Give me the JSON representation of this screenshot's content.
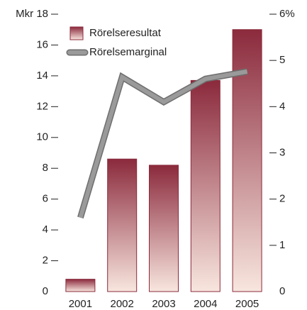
{
  "chart_data": {
    "type": "bar",
    "categories": [
      "2001",
      "2002",
      "2003",
      "2004",
      "2005"
    ],
    "series": [
      {
        "name": "Rörelseresultat",
        "type": "bar",
        "color": "#8b2a3c",
        "values": [
          0.8,
          8.6,
          8.2,
          13.7,
          17.0
        ]
      },
      {
        "name": "Rörelsemarginal",
        "type": "line",
        "axis": "y2",
        "color": "#9a9a9a",
        "values": [
          1.6,
          4.64,
          4.1,
          4.6,
          4.76
        ]
      }
    ],
    "ylim": [
      0,
      18
    ],
    "yticks": [
      0,
      2,
      4,
      6,
      8,
      10,
      12,
      14,
      16,
      {
        "value": 18,
        "label": "Mkr 18"
      }
    ],
    "y2lim": [
      0,
      6
    ],
    "y2ticks": [
      0,
      1,
      2,
      3,
      4,
      5,
      {
        "value": 6,
        "label": "6%"
      }
    ],
    "legend": "top-left"
  }
}
